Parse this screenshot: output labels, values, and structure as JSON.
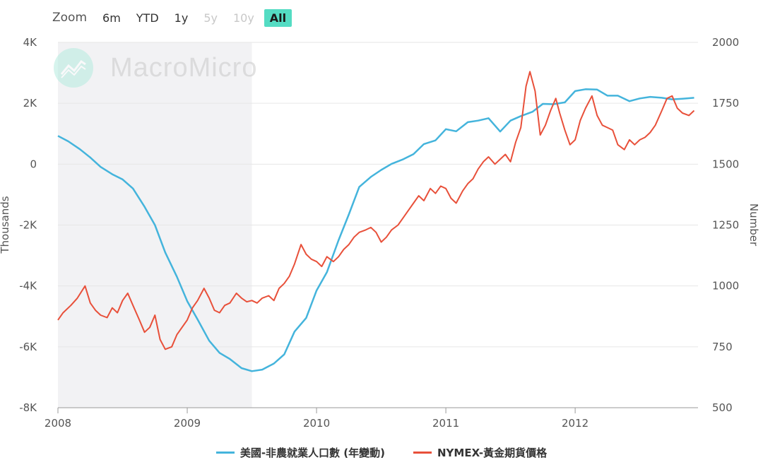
{
  "zoom": {
    "label": "Zoom",
    "buttons": [
      {
        "label": "6m",
        "state": "normal"
      },
      {
        "label": "YTD",
        "state": "normal"
      },
      {
        "label": "1y",
        "state": "normal"
      },
      {
        "label": "5y",
        "state": "disabled"
      },
      {
        "label": "10y",
        "state": "disabled"
      },
      {
        "label": "All",
        "state": "active"
      }
    ]
  },
  "watermark": {
    "text": "MacroMicro"
  },
  "chart_data": {
    "type": "line",
    "title": "",
    "xlabel": "",
    "x_ticks": [
      "2008",
      "2009",
      "2010",
      "2011",
      "2012"
    ],
    "x_range": [
      2008.0,
      2012.95
    ],
    "y_left": {
      "title": "Thousands",
      "min": -8000,
      "max": 4000,
      "ticks": [
        -8000,
        -6000,
        -4000,
        -2000,
        0,
        2000,
        4000
      ],
      "tick_labels": [
        "-8K",
        "-6K",
        "-4K",
        "-2K",
        "0",
        "2K",
        "4K"
      ]
    },
    "y_right": {
      "title": "Number",
      "min": 500,
      "max": 2000,
      "ticks": [
        500,
        750,
        1000,
        1250,
        1500,
        1750,
        2000
      ],
      "tick_labels": [
        "500",
        "750",
        "1000",
        "1250",
        "1500",
        "1750",
        "2000"
      ]
    },
    "recession_band": {
      "from": 2008.0,
      "to": 2009.5,
      "color": "#f2f2f4"
    },
    "series": [
      {
        "name": "美國-非農就業人口數 (年變動)",
        "axis": "left",
        "color": "#44b4dc",
        "points": [
          [
            2008.0,
            930
          ],
          [
            2008.08,
            750
          ],
          [
            2008.17,
            490
          ],
          [
            2008.25,
            220
          ],
          [
            2008.33,
            -90
          ],
          [
            2008.42,
            -330
          ],
          [
            2008.5,
            -500
          ],
          [
            2008.58,
            -800
          ],
          [
            2008.67,
            -1400
          ],
          [
            2008.75,
            -2000
          ],
          [
            2008.83,
            -2900
          ],
          [
            2008.92,
            -3700
          ],
          [
            2009.0,
            -4500
          ],
          [
            2009.08,
            -5100
          ],
          [
            2009.17,
            -5800
          ],
          [
            2009.25,
            -6200
          ],
          [
            2009.33,
            -6400
          ],
          [
            2009.42,
            -6700
          ],
          [
            2009.5,
            -6800
          ],
          [
            2009.58,
            -6750
          ],
          [
            2009.67,
            -6550
          ],
          [
            2009.75,
            -6250
          ],
          [
            2009.83,
            -5500
          ],
          [
            2009.92,
            -5050
          ],
          [
            2010.0,
            -4150
          ],
          [
            2010.08,
            -3550
          ],
          [
            2010.17,
            -2500
          ],
          [
            2010.25,
            -1650
          ],
          [
            2010.33,
            -750
          ],
          [
            2010.42,
            -420
          ],
          [
            2010.5,
            -190
          ],
          [
            2010.58,
            10
          ],
          [
            2010.67,
            160
          ],
          [
            2010.75,
            330
          ],
          [
            2010.83,
            660
          ],
          [
            2010.92,
            780
          ],
          [
            2011.0,
            1150
          ],
          [
            2011.08,
            1080
          ],
          [
            2011.17,
            1380
          ],
          [
            2011.25,
            1430
          ],
          [
            2011.33,
            1510
          ],
          [
            2011.42,
            1070
          ],
          [
            2011.5,
            1430
          ],
          [
            2011.58,
            1580
          ],
          [
            2011.67,
            1720
          ],
          [
            2011.75,
            1980
          ],
          [
            2011.83,
            1970
          ],
          [
            2011.92,
            2030
          ],
          [
            2012.0,
            2400
          ],
          [
            2012.08,
            2460
          ],
          [
            2012.17,
            2450
          ],
          [
            2012.25,
            2250
          ],
          [
            2012.33,
            2250
          ],
          [
            2012.42,
            2070
          ],
          [
            2012.5,
            2160
          ],
          [
            2012.58,
            2210
          ],
          [
            2012.67,
            2180
          ],
          [
            2012.75,
            2130
          ],
          [
            2012.83,
            2150
          ],
          [
            2012.92,
            2180
          ]
        ]
      },
      {
        "name": "NYMEX-黃金期貨價格",
        "axis": "right",
        "color": "#e8503a",
        "points": [
          [
            2008.0,
            860
          ],
          [
            2008.04,
            890
          ],
          [
            2008.1,
            920
          ],
          [
            2008.15,
            950
          ],
          [
            2008.21,
            1000
          ],
          [
            2008.25,
            930
          ],
          [
            2008.29,
            900
          ],
          [
            2008.33,
            880
          ],
          [
            2008.38,
            870
          ],
          [
            2008.42,
            910
          ],
          [
            2008.46,
            890
          ],
          [
            2008.5,
            940
          ],
          [
            2008.54,
            970
          ],
          [
            2008.58,
            920
          ],
          [
            2008.63,
            860
          ],
          [
            2008.67,
            810
          ],
          [
            2008.71,
            830
          ],
          [
            2008.75,
            880
          ],
          [
            2008.79,
            780
          ],
          [
            2008.83,
            740
          ],
          [
            2008.88,
            750
          ],
          [
            2008.92,
            800
          ],
          [
            2009.0,
            860
          ],
          [
            2009.04,
            910
          ],
          [
            2009.08,
            940
          ],
          [
            2009.13,
            990
          ],
          [
            2009.17,
            950
          ],
          [
            2009.21,
            900
          ],
          [
            2009.25,
            890
          ],
          [
            2009.29,
            920
          ],
          [
            2009.33,
            930
          ],
          [
            2009.38,
            970
          ],
          [
            2009.42,
            950
          ],
          [
            2009.46,
            935
          ],
          [
            2009.5,
            940
          ],
          [
            2009.54,
            930
          ],
          [
            2009.58,
            950
          ],
          [
            2009.63,
            960
          ],
          [
            2009.67,
            940
          ],
          [
            2009.71,
            990
          ],
          [
            2009.75,
            1010
          ],
          [
            2009.79,
            1040
          ],
          [
            2009.83,
            1090
          ],
          [
            2009.88,
            1170
          ],
          [
            2009.92,
            1130
          ],
          [
            2009.96,
            1110
          ],
          [
            2010.0,
            1100
          ],
          [
            2010.04,
            1080
          ],
          [
            2010.08,
            1120
          ],
          [
            2010.13,
            1100
          ],
          [
            2010.17,
            1120
          ],
          [
            2010.21,
            1150
          ],
          [
            2010.25,
            1170
          ],
          [
            2010.29,
            1200
          ],
          [
            2010.33,
            1220
          ],
          [
            2010.38,
            1230
          ],
          [
            2010.42,
            1240
          ],
          [
            2010.46,
            1220
          ],
          [
            2010.5,
            1180
          ],
          [
            2010.54,
            1200
          ],
          [
            2010.58,
            1230
          ],
          [
            2010.63,
            1250
          ],
          [
            2010.67,
            1280
          ],
          [
            2010.71,
            1310
          ],
          [
            2010.75,
            1340
          ],
          [
            2010.79,
            1370
          ],
          [
            2010.83,
            1350
          ],
          [
            2010.88,
            1400
          ],
          [
            2010.92,
            1380
          ],
          [
            2010.96,
            1410
          ],
          [
            2011.0,
            1400
          ],
          [
            2011.04,
            1360
          ],
          [
            2011.08,
            1340
          ],
          [
            2011.13,
            1390
          ],
          [
            2011.17,
            1420
          ],
          [
            2011.21,
            1440
          ],
          [
            2011.25,
            1480
          ],
          [
            2011.29,
            1510
          ],
          [
            2011.33,
            1530
          ],
          [
            2011.38,
            1500
          ],
          [
            2011.42,
            1520
          ],
          [
            2011.46,
            1540
          ],
          [
            2011.5,
            1510
          ],
          [
            2011.54,
            1590
          ],
          [
            2011.58,
            1650
          ],
          [
            2011.62,
            1820
          ],
          [
            2011.65,
            1880
          ],
          [
            2011.69,
            1800
          ],
          [
            2011.73,
            1620
          ],
          [
            2011.77,
            1660
          ],
          [
            2011.81,
            1720
          ],
          [
            2011.85,
            1770
          ],
          [
            2011.88,
            1710
          ],
          [
            2011.92,
            1640
          ],
          [
            2011.96,
            1580
          ],
          [
            2012.0,
            1600
          ],
          [
            2012.04,
            1680
          ],
          [
            2012.08,
            1730
          ],
          [
            2012.13,
            1780
          ],
          [
            2012.17,
            1700
          ],
          [
            2012.21,
            1660
          ],
          [
            2012.25,
            1650
          ],
          [
            2012.29,
            1640
          ],
          [
            2012.33,
            1580
          ],
          [
            2012.38,
            1560
          ],
          [
            2012.42,
            1600
          ],
          [
            2012.46,
            1580
          ],
          [
            2012.5,
            1600
          ],
          [
            2012.54,
            1610
          ],
          [
            2012.58,
            1630
          ],
          [
            2012.62,
            1660
          ],
          [
            2012.67,
            1720
          ],
          [
            2012.71,
            1770
          ],
          [
            2012.75,
            1780
          ],
          [
            2012.79,
            1730
          ],
          [
            2012.83,
            1710
          ],
          [
            2012.88,
            1700
          ],
          [
            2012.92,
            1720
          ]
        ]
      }
    ]
  }
}
